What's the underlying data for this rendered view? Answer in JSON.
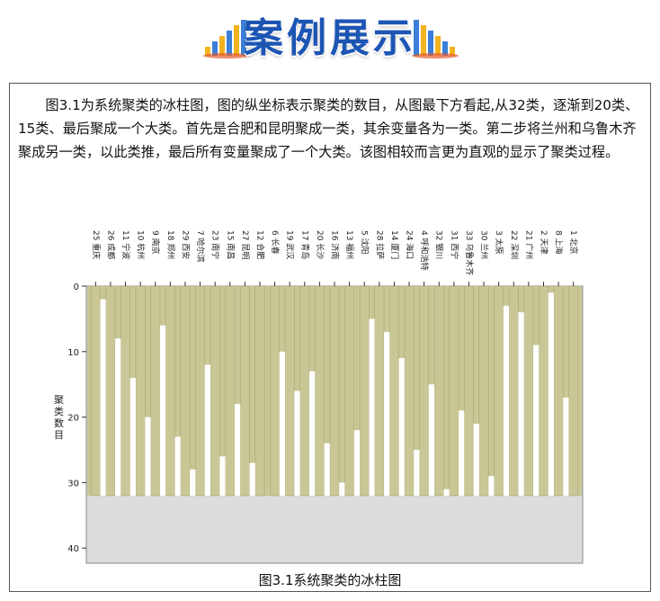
{
  "header": {
    "title": "案例展示"
  },
  "paragraph": "图3.1为系统聚类的冰柱图，图的纵坐标表示聚类的数目，从图最下方看起,从32类，逐渐到20类、15类、最后聚成一个大类。首先是合肥和昆明聚成一类，其余变量各为一类。第二步将兰州和乌鲁木齐聚成另一类，以此类推，最后所有变量聚成了一个大类。该图相较而言更为直观的显示了聚类过程。",
  "caption": "图3.1系统聚类的冰柱图",
  "chart_data": {
    "type": "icicle",
    "ylabel": "聚类数目",
    "ylim": [
      0,
      42
    ],
    "yticks": [
      0,
      10,
      20,
      30,
      40
    ],
    "gap_fill_from": 0,
    "gap_fill_to": 32,
    "colors": {
      "bar": "#c9c796",
      "gap": "#ffffff",
      "background": "#dcdcdc"
    },
    "categories": [
      "25 重庆",
      "26 成都",
      "11 宁波",
      "10 杭州",
      "9 南京",
      "18 郑州",
      "29 西安",
      "7 哈尔滨",
      "23 南宁",
      "15 南昌",
      "27 昆明",
      "12 合肥",
      "6 长春",
      "19 武汉",
      "17 青岛",
      "20 长沙",
      "16 济南",
      "13 福州",
      "5 沈阳",
      "28 拉萨",
      "14 厦门",
      "24 海口",
      "4 呼和浩特",
      "32 银川",
      "31 西宁",
      "33 乌鲁木齐",
      "30 兰州",
      "3 太原",
      "22 深圳",
      "21 广州",
      "2 天津",
      "8 上海",
      "1 北京"
    ],
    "merge_levels": [
      2,
      8,
      14,
      20,
      6,
      23,
      28,
      12,
      26,
      18,
      27,
      32,
      10,
      16,
      13,
      24,
      30,
      22,
      5,
      7,
      11,
      25,
      15,
      31,
      19,
      21,
      29,
      3,
      4,
      9,
      1,
      17
    ]
  }
}
